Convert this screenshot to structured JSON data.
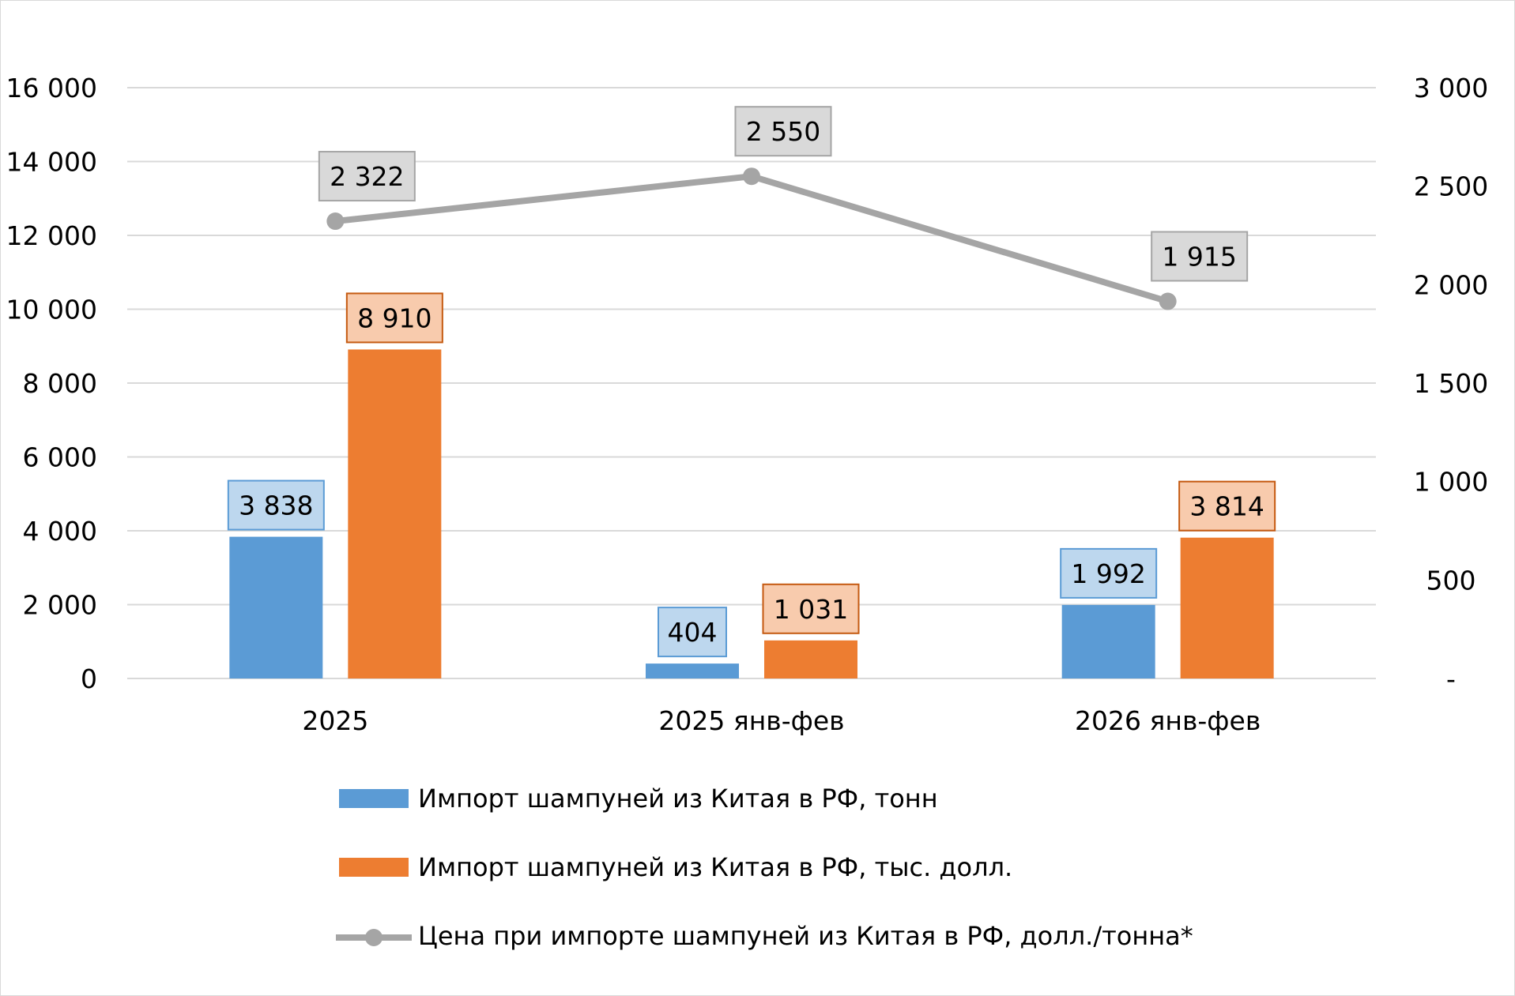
{
  "chart_data": {
    "type": "bar+line",
    "categories": [
      "2025",
      "2025 янв-фев",
      "2026 янв-фев"
    ],
    "series": [
      {
        "name": "Импорт шампуней из Китая в РФ, тонн",
        "type": "bar",
        "axis": "left",
        "color": "#5b9bd5",
        "label_fill": "#bdd7ee",
        "label_border": "#5b9bd5",
        "values": [
          3838,
          404,
          1992
        ],
        "labels": [
          "3 838",
          "404",
          "1 992"
        ]
      },
      {
        "name": "Импорт шампуней из Китая в РФ, тыс. долл.",
        "type": "bar",
        "axis": "left",
        "color": "#ed7d31",
        "label_fill": "#f8cbad",
        "label_border": "#c55a11",
        "values": [
          8910,
          1031,
          3814
        ],
        "labels": [
          "8 910",
          "1 031",
          "3 814"
        ]
      },
      {
        "name": "Цена при импорте шампуней из Китая в РФ, долл./тонна*",
        "type": "line",
        "axis": "right",
        "color": "#a5a5a5",
        "label_fill": "#d9d9d9",
        "label_border": "#a5a5a5",
        "values": [
          2322,
          2550,
          1915
        ],
        "labels": [
          "2 322",
          "2 550",
          "1 915"
        ]
      }
    ],
    "y_left": {
      "min": 0,
      "max": 16000,
      "step": 2000,
      "tick_labels": [
        "0",
        "2 000",
        "4 000",
        "6 000",
        "8 000",
        "10 000",
        "12 000",
        "14 000",
        "16 000"
      ]
    },
    "y_right": {
      "min": 0,
      "max": 3000,
      "step": 500,
      "tick_labels": [
        "-",
        "500",
        "1 000",
        "1 500",
        "2 000",
        "2 500",
        "3 000"
      ]
    },
    "grid": true,
    "gridline_color": "#d9d9d9",
    "legend_position": "bottom"
  }
}
